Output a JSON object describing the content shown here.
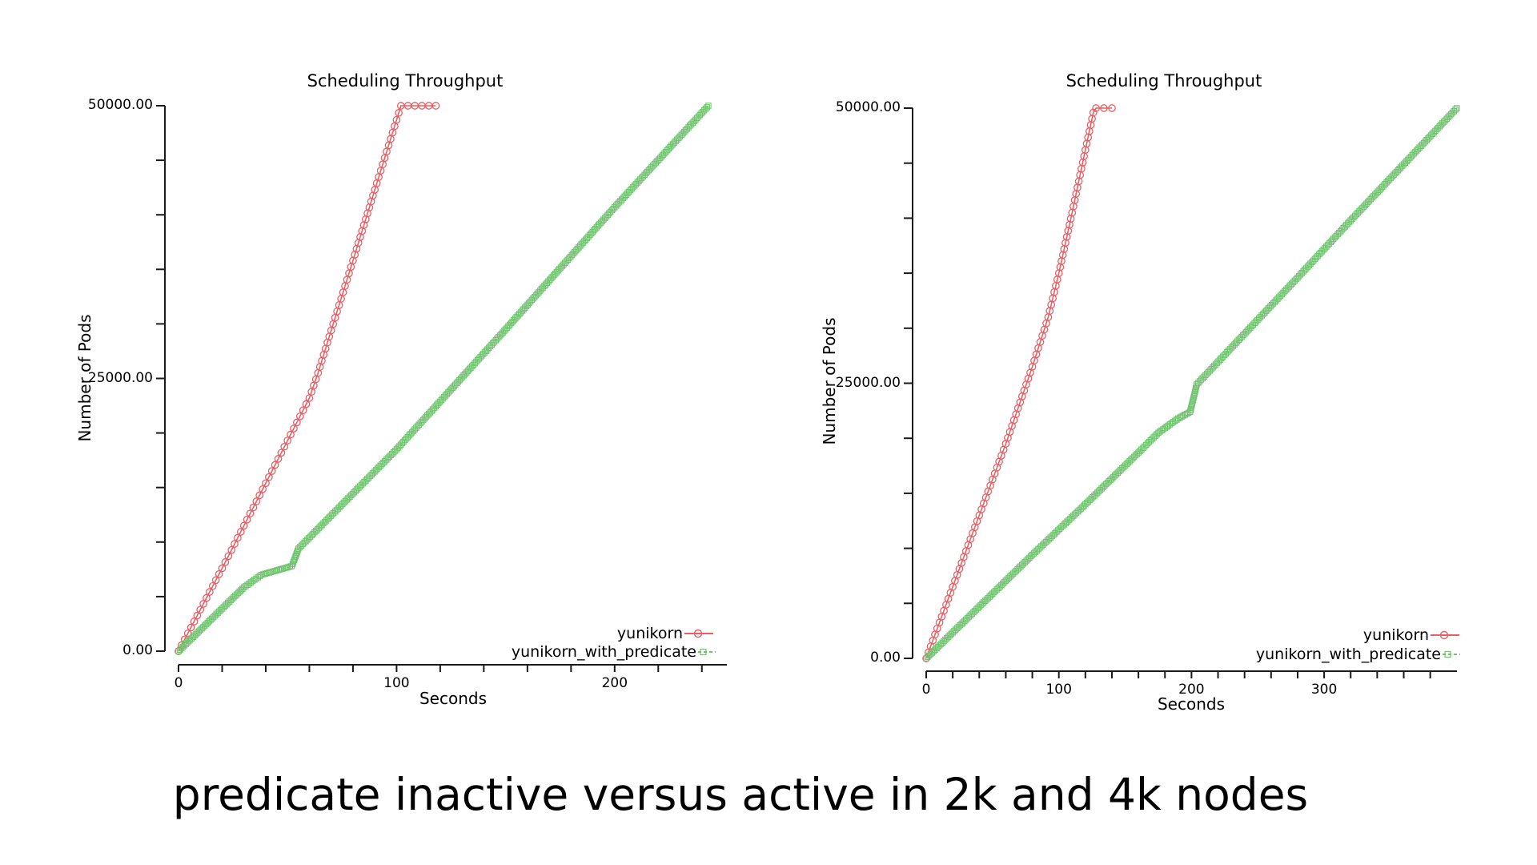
{
  "caption": "predicate inactive versus active in 2k and 4k nodes",
  "colors": {
    "yunikorn": "#e75f64",
    "yunikorn_with_predicate": "#70c46f",
    "axis": "#1a1a1a",
    "background": "#ffffff"
  },
  "chart_data": [
    {
      "type": "line",
      "title": "Scheduling Throughput",
      "xlabel": "Seconds",
      "ylabel": "Number of Pods",
      "xlim": [
        0,
        252
      ],
      "ylim": [
        0,
        50000
      ],
      "grid": false,
      "legend_position": "inside-bottom-right",
      "x_ticks": [
        {
          "value": 0,
          "label": "0"
        },
        {
          "value": 100,
          "label": "100"
        },
        {
          "value": 200,
          "label": "200"
        }
      ],
      "x_minor_tick_step": 20,
      "y_ticks": [
        {
          "value": 0,
          "label": "0.00"
        },
        {
          "value": 25000,
          "label": "25000.00"
        },
        {
          "value": 50000,
          "label": "50000.00"
        }
      ],
      "y_minor_tick_step": 5000,
      "series": [
        {
          "name": "yunikorn",
          "marker": "circle",
          "line_style": "solid",
          "points": [
            [
              0,
              0
            ],
            [
              10,
              3800
            ],
            [
              20,
              7600
            ],
            [
              30,
              11500
            ],
            [
              40,
              15400
            ],
            [
              50,
              19300
            ],
            [
              60,
              23200
            ],
            [
              64,
              25500
            ],
            [
              70,
              29400
            ],
            [
              80,
              35800
            ],
            [
              90,
              42300
            ],
            [
              100,
              48700
            ],
            [
              102,
              50000
            ],
            [
              118,
              50000
            ]
          ]
        },
        {
          "name": "yunikorn_with_predicate",
          "marker": "square",
          "line_style": "dashed",
          "points": [
            [
              0,
              0
            ],
            [
              10,
              1950
            ],
            [
              20,
              3900
            ],
            [
              30,
              5850
            ],
            [
              38,
              7000
            ],
            [
              45,
              7400
            ],
            [
              52,
              7800
            ],
            [
              55,
              9400
            ],
            [
              100,
              18500
            ],
            [
              150,
              29500
            ],
            [
              200,
              40700
            ],
            [
              243,
              50000
            ]
          ]
        }
      ]
    },
    {
      "type": "line",
      "title": "Scheduling Throughput",
      "xlabel": "Seconds",
      "ylabel": "Number of Pods",
      "xlim": [
        0,
        400
      ],
      "ylim": [
        0,
        50000
      ],
      "grid": false,
      "legend_position": "inside-bottom-right",
      "x_ticks": [
        {
          "value": 0,
          "label": "0"
        },
        {
          "value": 100,
          "label": "100"
        },
        {
          "value": 200,
          "label": "200"
        },
        {
          "value": 300,
          "label": "300"
        }
      ],
      "x_minor_tick_step": 20,
      "y_ticks": [
        {
          "value": 0,
          "label": "0.00"
        },
        {
          "value": 25000,
          "label": "25000.00"
        },
        {
          "value": 50000,
          "label": "50000.00"
        }
      ],
      "y_minor_tick_step": 5000,
      "series": [
        {
          "name": "yunikorn",
          "marker": "circle",
          "line_style": "solid",
          "points": [
            [
              0,
              0
            ],
            [
              20,
              6500
            ],
            [
              40,
              13000
            ],
            [
              60,
              19500
            ],
            [
              80,
              26500
            ],
            [
              92,
              31000
            ],
            [
              100,
              35000
            ],
            [
              110,
              40500
            ],
            [
              120,
              46200
            ],
            [
              126,
              49600
            ],
            [
              128,
              50000
            ],
            [
              140,
              50000
            ]
          ]
        },
        {
          "name": "yunikorn_with_predicate",
          "marker": "square",
          "line_style": "dashed",
          "points": [
            [
              0,
              0
            ],
            [
              40,
              4700
            ],
            [
              80,
              9400
            ],
            [
              120,
              14000
            ],
            [
              160,
              18700
            ],
            [
              175,
              20500
            ],
            [
              190,
              21800
            ],
            [
              199,
              22400
            ],
            [
              204,
              24900
            ],
            [
              240,
              29500
            ],
            [
              280,
              34600
            ],
            [
              320,
              39800
            ],
            [
              360,
              44900
            ],
            [
              400,
              50000
            ]
          ]
        }
      ]
    }
  ]
}
